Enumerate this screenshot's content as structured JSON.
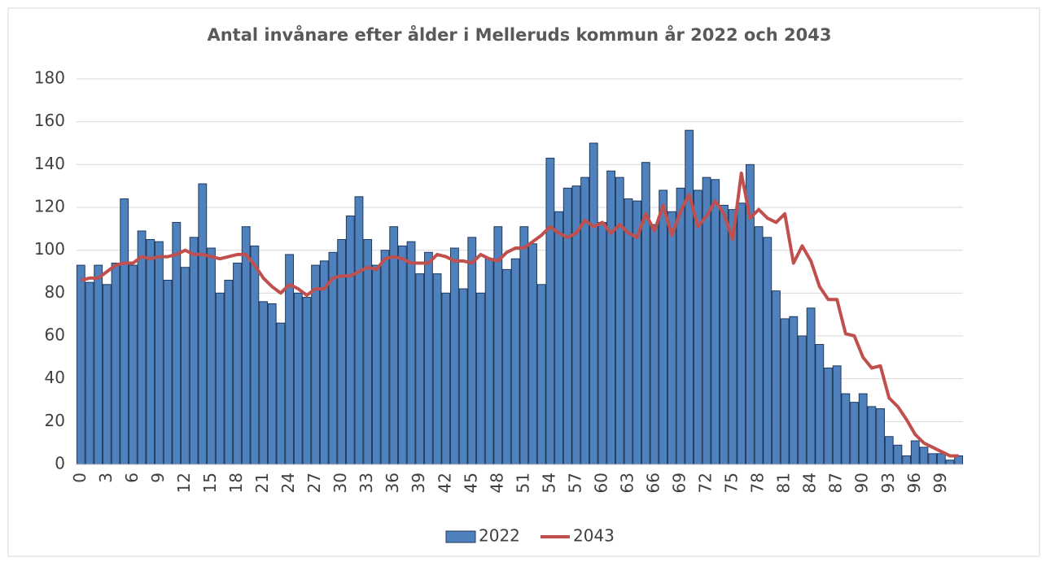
{
  "chart_data": {
    "type": "bar",
    "title": "Antal invånare efter ålder i Melleruds kommun år 2022 och 2043",
    "categories": [
      "0",
      null,
      null,
      "3",
      null,
      null,
      "6",
      null,
      null,
      "9",
      null,
      null,
      "12",
      null,
      null,
      "15",
      null,
      null,
      "18",
      null,
      null,
      "21",
      null,
      null,
      "24",
      null,
      null,
      "27",
      null,
      null,
      "30",
      null,
      null,
      "33",
      null,
      null,
      "36",
      null,
      null,
      "39",
      null,
      null,
      "42",
      null,
      null,
      "45",
      null,
      null,
      "48",
      null,
      null,
      "51",
      null,
      null,
      "54",
      null,
      null,
      "57",
      null,
      null,
      "60",
      null,
      null,
      "63",
      null,
      null,
      "66",
      null,
      null,
      "69",
      null,
      null,
      "72",
      null,
      null,
      "75",
      null,
      null,
      "78",
      null,
      null,
      "81",
      null,
      null,
      "84",
      null,
      null,
      "87",
      null,
      null,
      "90",
      null,
      null,
      "93",
      null,
      null,
      "96",
      null,
      null,
      "99",
      null,
      null
    ],
    "series": [
      {
        "name": "2022",
        "type": "bar",
        "color": "#4f81bd",
        "values": [
          93,
          85,
          93,
          84,
          94,
          124,
          93,
          109,
          105,
          104,
          86,
          113,
          92,
          106,
          131,
          101,
          80,
          86,
          94,
          111,
          102,
          76,
          75,
          66,
          98,
          80,
          78,
          93,
          95,
          99,
          105,
          116,
          125,
          105,
          93,
          100,
          111,
          102,
          104,
          89,
          99,
          89,
          80,
          101,
          82,
          106,
          80,
          96,
          111,
          91,
          96,
          111,
          103,
          84,
          143,
          118,
          129,
          130,
          134,
          150,
          113,
          137,
          134,
          124,
          123,
          141,
          112,
          128,
          118,
          129,
          156,
          128,
          134,
          133,
          121,
          119,
          122,
          140,
          111,
          106,
          81,
          68,
          69,
          60,
          73,
          56,
          45,
          46,
          33,
          29,
          33,
          27,
          26,
          13,
          9,
          4,
          11,
          8,
          5,
          5,
          2,
          4
        ]
      },
      {
        "name": "2043",
        "type": "line",
        "color": "#c0504d",
        "values": [
          86,
          87,
          87,
          90,
          93,
          94,
          94,
          97,
          96,
          97,
          97,
          98,
          100,
          98,
          98,
          97,
          96,
          97,
          98,
          98,
          93,
          87,
          83,
          80,
          84,
          82,
          79,
          82,
          82,
          87,
          88,
          88,
          90,
          92,
          91,
          96,
          97,
          96,
          94,
          94,
          94,
          98,
          97,
          95,
          95,
          94,
          98,
          96,
          95,
          99,
          101,
          101,
          104,
          107,
          111,
          108,
          106,
          108,
          114,
          111,
          113,
          108,
          112,
          108,
          106,
          117,
          109,
          121,
          107,
          118,
          126,
          111,
          116,
          123,
          117,
          105,
          136,
          115,
          119,
          115,
          113,
          117,
          94,
          102,
          95,
          83,
          77,
          77,
          61,
          60,
          50,
          45,
          46,
          31,
          27,
          21,
          14,
          10,
          8,
          6,
          4,
          4
        ]
      }
    ],
    "ylim": [
      0,
      180
    ],
    "yticks": [
      0,
      20,
      40,
      60,
      80,
      100,
      120,
      140,
      160,
      180
    ],
    "grid": true,
    "legend": "bottom"
  }
}
